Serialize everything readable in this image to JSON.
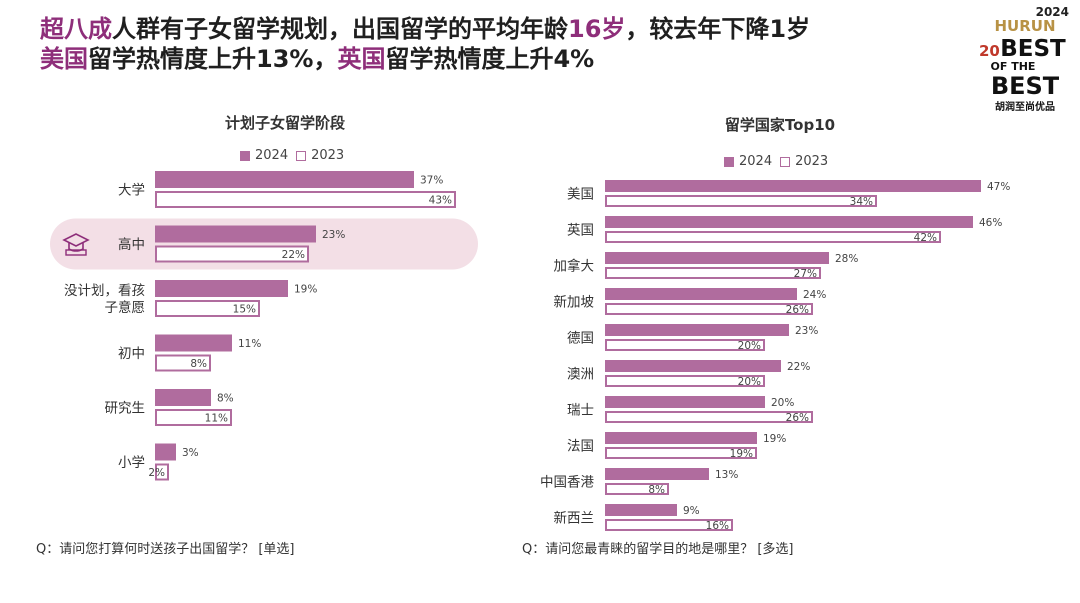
{
  "headline": {
    "line1": [
      {
        "text": "超八成",
        "hl": true
      },
      {
        "text": "人群有子女留学规划，出国留学的平均年龄",
        "hl": false
      },
      {
        "text": "16岁",
        "hl": true
      },
      {
        "text": "，较去年下降1岁",
        "hl": false
      }
    ],
    "line2": [
      {
        "text": "美国",
        "hl": true
      },
      {
        "text": "留学热情度上升13%，",
        "hl": false
      },
      {
        "text": "英国",
        "hl": true
      },
      {
        "text": "留学热情度上升4%",
        "hl": false
      }
    ]
  },
  "logo": {
    "year": "2024",
    "brand": "HURUN",
    "top": "BEST",
    "mid": "OF THE",
    "bottom": "BEST",
    "anniv": "20",
    "tagline": "胡润至尚优品"
  },
  "colors": {
    "accent": "#8e2e7a",
    "bar": "#b06c9e",
    "highlight_band": "#f3dfe6"
  },
  "chart_data": [
    {
      "type": "bar",
      "orientation": "horizontal",
      "title": "计划子女留学阶段",
      "legend": [
        "2024",
        "2023"
      ],
      "legend_placement": "top",
      "categories": [
        "大学",
        "高中",
        "没计划，看孩子意愿",
        "初中",
        "研究生",
        "小学"
      ],
      "category_lines": [
        [
          "大学"
        ],
        [
          "高中"
        ],
        [
          "没计划，看孩",
          "子意愿"
        ],
        [
          "初中"
        ],
        [
          "研究生"
        ],
        [
          "小学"
        ]
      ],
      "series": [
        {
          "name": "2024",
          "style": "filled",
          "values": [
            37,
            23,
            19,
            11,
            8,
            3
          ]
        },
        {
          "name": "2023",
          "style": "outline",
          "values": [
            43,
            22,
            15,
            8,
            11,
            2
          ]
        }
      ],
      "value_suffix": "%",
      "highlight_category": "高中",
      "highlight_icon": "graduation-book-icon",
      "question": "Q：请问您打算何时送孩子出国留学？ [单选]"
    },
    {
      "type": "bar",
      "orientation": "horizontal",
      "title": "留学国家Top10",
      "legend": [
        "2024",
        "2023"
      ],
      "legend_placement": "top",
      "categories": [
        "美国",
        "英国",
        "加拿大",
        "新加坡",
        "德国",
        "澳洲",
        "瑞士",
        "法国",
        "中国香港",
        "新西兰"
      ],
      "series": [
        {
          "name": "2024",
          "style": "filled",
          "values": [
            47,
            46,
            28,
            24,
            23,
            22,
            20,
            19,
            13,
            9
          ]
        },
        {
          "name": "2023",
          "style": "outline",
          "values": [
            34,
            42,
            27,
            26,
            20,
            20,
            26,
            19,
            8,
            16
          ]
        }
      ],
      "value_suffix": "%",
      "question": "Q：请问您最青睐的留学目的地是哪里？ [多选]"
    }
  ]
}
